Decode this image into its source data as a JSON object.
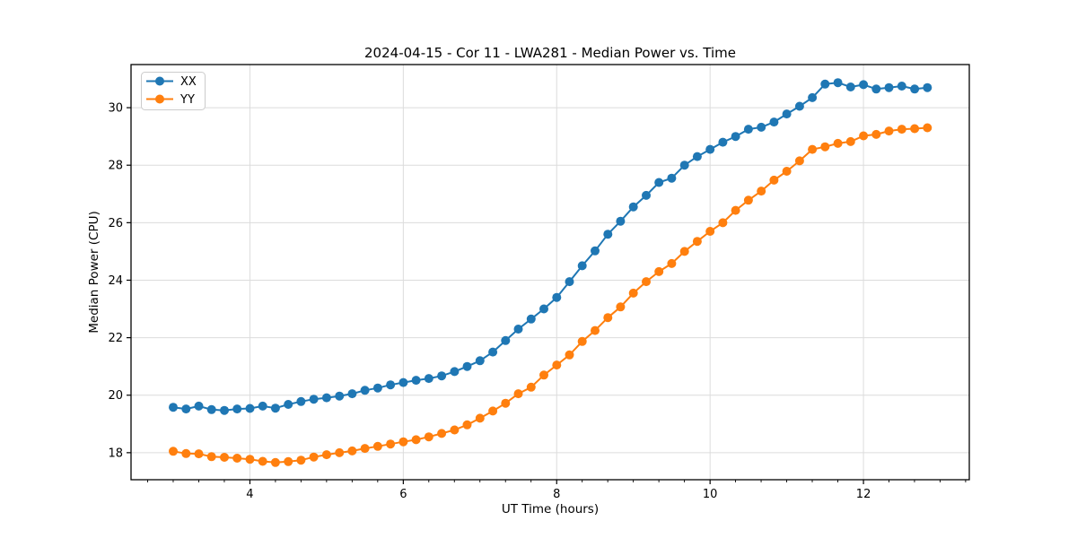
{
  "chart_data": {
    "type": "line",
    "title": "2024-04-15 - Cor 11 - LWA281 - Median Power vs. Time",
    "xlabel": "UT Time (hours)",
    "ylabel": "Median Power (CPU)",
    "xlim": [
      2.45,
      13.38
    ],
    "ylim": [
      17.06,
      31.5
    ],
    "x_ticks": [
      4,
      6,
      8,
      10,
      12
    ],
    "x_minor_tick_step": 0.3333,
    "y_ticks": [
      18,
      20,
      22,
      24,
      26,
      28,
      30
    ],
    "grid": "on",
    "legend_position": "upper-left",
    "colors": {
      "xx": "#1f77b4",
      "yy": "#ff7f0e",
      "grid": "#dcdcdc",
      "spine": "#000000"
    },
    "x": [
      3.0,
      3.167,
      3.333,
      3.5,
      3.667,
      3.833,
      4.0,
      4.167,
      4.333,
      4.5,
      4.667,
      4.833,
      5.0,
      5.167,
      5.333,
      5.5,
      5.667,
      5.833,
      6.0,
      6.167,
      6.333,
      6.5,
      6.667,
      6.833,
      7.0,
      7.167,
      7.333,
      7.5,
      7.667,
      7.833,
      8.0,
      8.167,
      8.333,
      8.5,
      8.667,
      8.833,
      9.0,
      9.167,
      9.333,
      9.5,
      9.667,
      9.833,
      10.0,
      10.167,
      10.333,
      10.5,
      10.667,
      10.833,
      11.0,
      11.167,
      11.333,
      11.5,
      11.667,
      11.833,
      12.0,
      12.167,
      12.333,
      12.5,
      12.667,
      12.833
    ],
    "series": [
      {
        "name": "XX",
        "color": "#1f77b4",
        "values": [
          19.58,
          19.52,
          19.62,
          19.5,
          19.47,
          19.52,
          19.54,
          19.62,
          19.55,
          19.68,
          19.78,
          19.86,
          19.91,
          19.97,
          20.05,
          20.17,
          20.25,
          20.36,
          20.44,
          20.52,
          20.58,
          20.67,
          20.82,
          21.0,
          21.2,
          21.5,
          21.9,
          22.3,
          22.65,
          23.0,
          23.4,
          23.95,
          24.5,
          25.02,
          25.6,
          26.05,
          26.55,
          26.95,
          27.4,
          27.55,
          28.0,
          28.3,
          28.55,
          28.8,
          29.0,
          29.25,
          29.32,
          29.5,
          29.78,
          30.05,
          30.35,
          30.82,
          30.87,
          30.72,
          30.8,
          30.65,
          30.7,
          30.75,
          30.65,
          30.7
        ]
      },
      {
        "name": "YY",
        "color": "#ff7f0e",
        "values": [
          18.05,
          17.97,
          17.96,
          17.86,
          17.84,
          17.81,
          17.77,
          17.7,
          17.66,
          17.69,
          17.74,
          17.85,
          17.93,
          18.0,
          18.06,
          18.15,
          18.22,
          18.3,
          18.38,
          18.45,
          18.55,
          18.67,
          18.79,
          18.97,
          19.2,
          19.45,
          19.72,
          20.05,
          20.28,
          20.7,
          21.05,
          21.4,
          21.87,
          22.25,
          22.7,
          23.07,
          23.55,
          23.95,
          24.3,
          24.58,
          25.0,
          25.35,
          25.7,
          26.0,
          26.43,
          26.78,
          27.1,
          27.48,
          27.79,
          28.15,
          28.55,
          28.64,
          28.76,
          28.82,
          29.02,
          29.07,
          29.19,
          29.25,
          29.27,
          29.3
        ]
      }
    ]
  }
}
